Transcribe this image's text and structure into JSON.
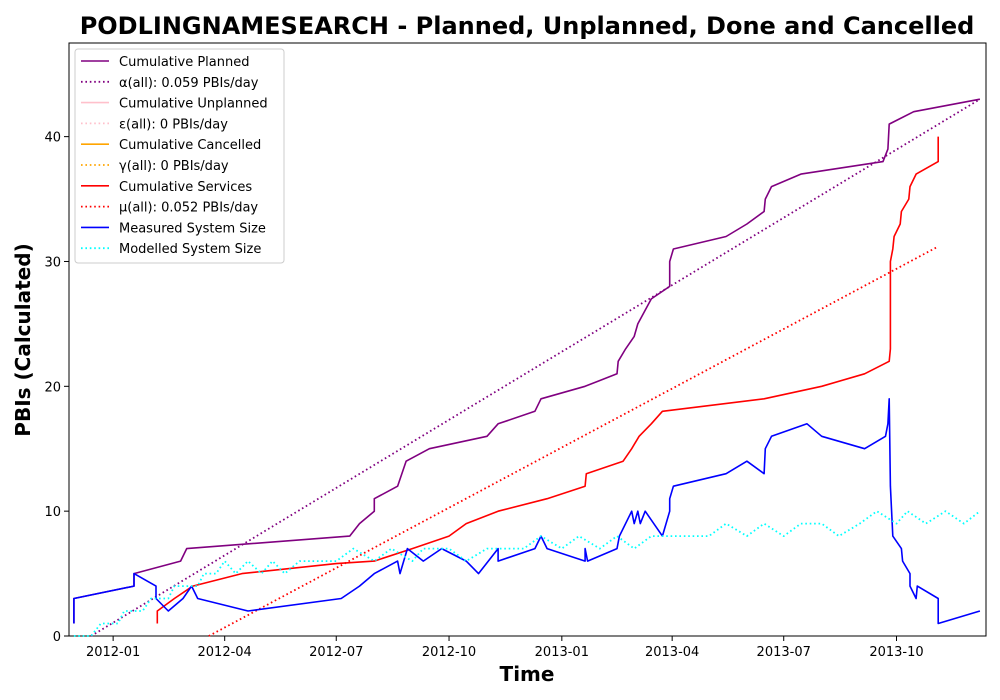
{
  "chart_data": {
    "type": "line",
    "title": "PODLINGNAMESEARCH - Planned, Unplanned, Done  and Cancelled",
    "xlabel": "Time",
    "ylabel": "PBIs (Calculated)",
    "xlim": [
      "2011-11-26",
      "2013-12-13"
    ],
    "ylim": [
      0,
      47.5
    ],
    "xticks": [
      "2012-01",
      "2012-04",
      "2012-07",
      "2012-10",
      "2013-01",
      "2013-04",
      "2013-07",
      "2013-10"
    ],
    "xtick_dates": [
      "2012-01-01",
      "2012-04-01",
      "2012-07-01",
      "2012-10-01",
      "2013-01-01",
      "2013-04-01",
      "2013-07-01",
      "2013-10-01"
    ],
    "yticks": [
      0,
      10,
      20,
      30,
      40
    ],
    "grid": false,
    "legend_position": "top-left",
    "series": [
      {
        "name": "Cumulative Planned",
        "color": "#800080",
        "style": "solid",
        "points": [
          [
            "2011-11-30",
            1
          ],
          [
            "2011-11-30",
            3
          ],
          [
            "2012-01-18",
            4
          ],
          [
            "2012-01-18",
            5
          ],
          [
            "2012-02-25",
            6
          ],
          [
            "2012-03-01",
            7
          ],
          [
            "2012-07-12",
            8
          ],
          [
            "2012-07-20",
            9
          ],
          [
            "2012-08-01",
            10
          ],
          [
            "2012-08-01",
            11
          ],
          [
            "2012-08-20",
            12
          ],
          [
            "2012-08-27",
            14
          ],
          [
            "2012-09-15",
            15
          ],
          [
            "2012-11-01",
            16
          ],
          [
            "2012-11-10",
            17
          ],
          [
            "2012-12-10",
            18
          ],
          [
            "2012-12-15",
            19
          ],
          [
            "2013-01-20",
            20
          ],
          [
            "2013-02-15",
            21
          ],
          [
            "2013-02-16",
            22
          ],
          [
            "2013-02-22",
            23
          ],
          [
            "2013-03-01",
            24
          ],
          [
            "2013-03-04",
            25
          ],
          [
            "2013-03-15",
            27
          ],
          [
            "2013-03-30",
            28
          ],
          [
            "2013-03-30",
            30
          ],
          [
            "2013-04-02",
            31
          ],
          [
            "2013-05-15",
            32
          ],
          [
            "2013-06-01",
            33
          ],
          [
            "2013-06-15",
            34
          ],
          [
            "2013-06-16",
            35
          ],
          [
            "2013-06-21",
            36
          ],
          [
            "2013-07-15",
            37
          ],
          [
            "2013-09-20",
            38
          ],
          [
            "2013-09-24",
            39
          ],
          [
            "2013-09-25",
            41
          ],
          [
            "2013-10-15",
            42
          ],
          [
            "2013-12-08",
            43
          ]
        ]
      },
      {
        "name": "α(all): 0.059 PBIs/day",
        "color": "#800080",
        "style": "dotted",
        "points": [
          [
            "2011-12-14",
            0
          ],
          [
            "2013-12-08",
            43
          ]
        ]
      },
      {
        "name": "Cumulative Unplanned",
        "color": "#ffc0cb",
        "style": "solid",
        "points": []
      },
      {
        "name": "ε(all): 0 PBIs/day",
        "color": "#ffc0cb",
        "style": "dotted",
        "points": []
      },
      {
        "name": "Cumulative Cancelled",
        "color": "#ffa500",
        "style": "solid",
        "points": []
      },
      {
        "name": "γ(all): 0 PBIs/day",
        "color": "#ffa500",
        "style": "dotted",
        "points": []
      },
      {
        "name": "Cumulative Services",
        "color": "#ff0000",
        "style": "solid",
        "points": [
          [
            "2012-02-06",
            1
          ],
          [
            "2012-02-06",
            2
          ],
          [
            "2012-02-20",
            3
          ],
          [
            "2012-03-06",
            4
          ],
          [
            "2012-04-15",
            5
          ],
          [
            "2012-07-01",
            5.8
          ],
          [
            "2012-08-01",
            6
          ],
          [
            "2012-09-01",
            7
          ],
          [
            "2012-10-01",
            8
          ],
          [
            "2012-10-15",
            9
          ],
          [
            "2012-11-10",
            10
          ],
          [
            "2012-12-20",
            11
          ],
          [
            "2013-01-20",
            12
          ],
          [
            "2013-01-21",
            13
          ],
          [
            "2013-02-20",
            14
          ],
          [
            "2013-02-27",
            15
          ],
          [
            "2013-03-05",
            16
          ],
          [
            "2013-03-15",
            17
          ],
          [
            "2013-03-24",
            18
          ],
          [
            "2013-06-15",
            19
          ],
          [
            "2013-08-01",
            20
          ],
          [
            "2013-09-05",
            21
          ],
          [
            "2013-09-25",
            22
          ],
          [
            "2013-09-26",
            23
          ],
          [
            "2013-09-26",
            30
          ],
          [
            "2013-09-28",
            31
          ],
          [
            "2013-09-29",
            32
          ],
          [
            "2013-10-04",
            33
          ],
          [
            "2013-10-05",
            34
          ],
          [
            "2013-10-11",
            35
          ],
          [
            "2013-10-12",
            36
          ],
          [
            "2013-10-17",
            37
          ],
          [
            "2013-11-04",
            38
          ],
          [
            "2013-11-04",
            40
          ]
        ]
      },
      {
        "name": "μ(all): 0.052 PBIs/day",
        "color": "#ff0000",
        "style": "dotted",
        "points": [
          [
            "2012-03-19",
            0
          ],
          [
            "2013-11-04",
            31.2
          ]
        ]
      },
      {
        "name": "Measured System Size",
        "color": "#0000ff",
        "style": "solid",
        "points": [
          [
            "2011-11-30",
            1
          ],
          [
            "2011-11-30",
            3
          ],
          [
            "2012-01-18",
            4
          ],
          [
            "2012-01-18",
            5
          ],
          [
            "2012-02-05",
            4
          ],
          [
            "2012-02-05",
            3
          ],
          [
            "2012-02-15",
            2
          ],
          [
            "2012-02-27",
            3
          ],
          [
            "2012-03-05",
            4
          ],
          [
            "2012-03-10",
            3
          ],
          [
            "2012-04-20",
            2
          ],
          [
            "2012-07-05",
            3
          ],
          [
            "2012-07-20",
            4
          ],
          [
            "2012-08-01",
            5
          ],
          [
            "2012-08-01",
            5
          ],
          [
            "2012-08-20",
            6
          ],
          [
            "2012-08-22",
            5
          ],
          [
            "2012-08-28",
            7
          ],
          [
            "2012-09-10",
            6
          ],
          [
            "2012-09-25",
            7
          ],
          [
            "2012-10-15",
            6
          ],
          [
            "2012-10-25",
            5
          ],
          [
            "2012-11-10",
            7
          ],
          [
            "2012-11-10",
            6
          ],
          [
            "2012-12-10",
            7
          ],
          [
            "2012-12-15",
            8
          ],
          [
            "2012-12-20",
            7
          ],
          [
            "2013-01-20",
            6
          ],
          [
            "2013-01-20",
            7
          ],
          [
            "2013-01-22",
            6
          ],
          [
            "2013-02-15",
            7
          ],
          [
            "2013-02-17",
            8
          ],
          [
            "2013-02-27",
            10
          ],
          [
            "2013-03-01",
            9
          ],
          [
            "2013-03-04",
            10
          ],
          [
            "2013-03-06",
            9
          ],
          [
            "2013-03-10",
            10
          ],
          [
            "2013-03-24",
            8
          ],
          [
            "2013-03-30",
            10
          ],
          [
            "2013-03-30",
            11
          ],
          [
            "2013-04-02",
            12
          ],
          [
            "2013-05-15",
            13
          ],
          [
            "2013-06-01",
            14
          ],
          [
            "2013-06-15",
            13
          ],
          [
            "2013-06-16",
            15
          ],
          [
            "2013-06-21",
            16
          ],
          [
            "2013-07-20",
            17
          ],
          [
            "2013-08-01",
            16
          ],
          [
            "2013-09-05",
            15
          ],
          [
            "2013-09-22",
            16
          ],
          [
            "2013-09-24",
            17
          ],
          [
            "2013-09-25",
            19
          ],
          [
            "2013-09-26",
            12
          ],
          [
            "2013-09-28",
            8
          ],
          [
            "2013-10-05",
            7
          ],
          [
            "2013-10-06",
            6
          ],
          [
            "2013-10-12",
            5
          ],
          [
            "2013-10-12",
            4
          ],
          [
            "2013-10-17",
            3
          ],
          [
            "2013-10-18",
            4
          ],
          [
            "2013-11-04",
            3
          ],
          [
            "2013-11-04",
            1
          ],
          [
            "2013-12-08",
            2
          ]
        ]
      },
      {
        "name": "Modelled System Size",
        "color": "#00ffff",
        "style": "dotted",
        "points": [
          [
            "2011-11-30",
            0
          ],
          [
            "2011-12-14",
            0
          ],
          [
            "2011-12-22",
            1
          ],
          [
            "2012-01-05",
            1
          ],
          [
            "2012-01-10",
            2
          ],
          [
            "2012-01-25",
            2
          ],
          [
            "2012-02-01",
            3
          ],
          [
            "2012-02-15",
            3
          ],
          [
            "2012-02-20",
            4
          ],
          [
            "2012-03-10",
            4
          ],
          [
            "2012-03-15",
            5
          ],
          [
            "2012-03-25",
            5
          ],
          [
            "2012-04-01",
            6
          ],
          [
            "2012-04-10",
            5
          ],
          [
            "2012-04-20",
            6
          ],
          [
            "2012-05-01",
            5
          ],
          [
            "2012-05-10",
            6
          ],
          [
            "2012-05-20",
            5
          ],
          [
            "2012-06-01",
            6
          ],
          [
            "2012-06-15",
            6
          ],
          [
            "2012-07-01",
            6
          ],
          [
            "2012-07-15",
            7
          ],
          [
            "2012-08-01",
            6
          ],
          [
            "2012-08-15",
            7
          ],
          [
            "2012-09-01",
            6
          ],
          [
            "2012-09-10",
            7
          ],
          [
            "2012-10-01",
            7
          ],
          [
            "2012-10-15",
            6
          ],
          [
            "2012-11-01",
            7
          ],
          [
            "2012-12-01",
            7
          ],
          [
            "2012-12-15",
            8
          ],
          [
            "2013-01-01",
            7
          ],
          [
            "2013-01-15",
            8
          ],
          [
            "2013-02-01",
            7
          ],
          [
            "2013-02-15",
            8
          ],
          [
            "2013-03-01",
            7
          ],
          [
            "2013-03-15",
            8
          ],
          [
            "2013-04-01",
            8
          ],
          [
            "2013-05-01",
            8
          ],
          [
            "2013-05-15",
            9
          ],
          [
            "2013-06-01",
            8
          ],
          [
            "2013-06-15",
            9
          ],
          [
            "2013-07-01",
            8
          ],
          [
            "2013-07-15",
            9
          ],
          [
            "2013-08-01",
            9
          ],
          [
            "2013-08-15",
            8
          ],
          [
            "2013-09-01",
            9
          ],
          [
            "2013-09-15",
            10
          ],
          [
            "2013-10-01",
            9
          ],
          [
            "2013-10-10",
            10
          ],
          [
            "2013-10-25",
            9
          ],
          [
            "2013-11-10",
            10
          ],
          [
            "2013-11-25",
            9
          ],
          [
            "2013-12-08",
            10
          ]
        ]
      }
    ]
  }
}
